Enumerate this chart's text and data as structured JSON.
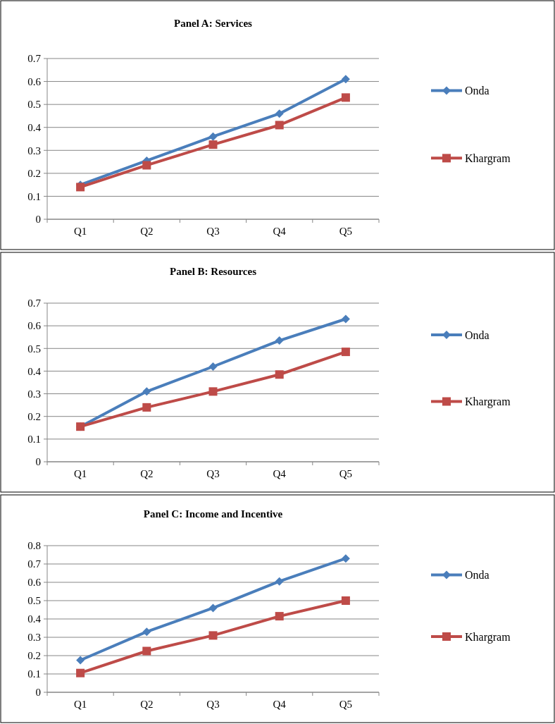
{
  "chart_data": [
    {
      "type": "line",
      "title": "Panel A: Services",
      "categories": [
        "Q1",
        "Q2",
        "Q3",
        "Q4",
        "Q5"
      ],
      "ylim": [
        0,
        0.7
      ],
      "yticks": [
        0,
        0.1,
        0.2,
        0.3,
        0.4,
        0.5,
        0.6,
        0.7
      ],
      "grid": "y",
      "legend": "right",
      "series": [
        {
          "name": "Onda",
          "color": "#4a7ebb",
          "marker": "diamond",
          "values": [
            0.15,
            0.255,
            0.36,
            0.46,
            0.61
          ]
        },
        {
          "name": "Khargram",
          "color": "#be4b48",
          "marker": "square",
          "values": [
            0.14,
            0.235,
            0.325,
            0.41,
            0.53
          ]
        }
      ]
    },
    {
      "type": "line",
      "title": "Panel B: Resources",
      "categories": [
        "Q1",
        "Q2",
        "Q3",
        "Q4",
        "Q5"
      ],
      "ylim": [
        0,
        0.7
      ],
      "yticks": [
        0,
        0.1,
        0.2,
        0.3,
        0.4,
        0.5,
        0.6,
        0.7
      ],
      "grid": "y",
      "legend": "right",
      "series": [
        {
          "name": "Onda",
          "color": "#4a7ebb",
          "marker": "diamond",
          "values": [
            0.155,
            0.31,
            0.42,
            0.535,
            0.63
          ]
        },
        {
          "name": "Khargram",
          "color": "#be4b48",
          "marker": "square",
          "values": [
            0.155,
            0.24,
            0.31,
            0.385,
            0.485
          ]
        }
      ]
    },
    {
      "type": "line",
      "title": "Panel C: Income and Incentive",
      "categories": [
        "Q1",
        "Q2",
        "Q3",
        "Q4",
        "Q5"
      ],
      "ylim": [
        0,
        0.8
      ],
      "yticks": [
        0,
        0.1,
        0.2,
        0.3,
        0.4,
        0.5,
        0.6,
        0.7,
        0.8
      ],
      "grid": "y",
      "legend": "right",
      "series": [
        {
          "name": "Onda",
          "color": "#4a7ebb",
          "marker": "diamond",
          "values": [
            0.175,
            0.33,
            0.46,
            0.605,
            0.73
          ]
        },
        {
          "name": "Khargram",
          "color": "#be4b48",
          "marker": "square",
          "values": [
            0.105,
            0.225,
            0.31,
            0.415,
            0.5
          ]
        }
      ]
    }
  ]
}
